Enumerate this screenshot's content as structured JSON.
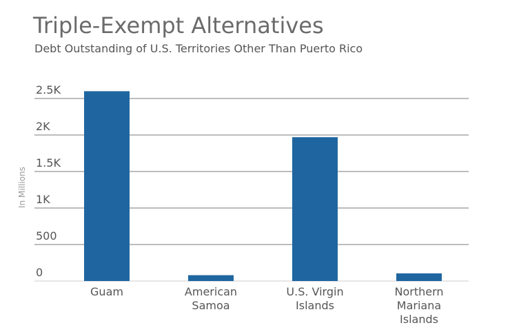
{
  "chart_data": {
    "type": "bar",
    "title": "Triple-Exempt Alternatives",
    "subtitle": "Debt Outstanding of U.S. Territories Other Than Puerto Rico",
    "ylabel": "In Millions",
    "xlabel": "",
    "categories": [
      "Guam",
      "American Samoa",
      "U.S. Virgin Islands",
      "Northern Mariana Islands"
    ],
    "category_lines": [
      [
        "Guam"
      ],
      [
        "American",
        "Samoa"
      ],
      [
        "U.S. Virgin",
        "Islands"
      ],
      [
        "Northern",
        "Mariana",
        "Islands"
      ]
    ],
    "values": [
      2600,
      80,
      1970,
      105
    ],
    "ylim": [
      0,
      2500
    ],
    "yticks": [
      0,
      500,
      1000,
      1500,
      2000,
      2500
    ],
    "ytick_labels": [
      "0",
      "500",
      "1K",
      "1.5K",
      "2K",
      "2.5K"
    ],
    "grid": true,
    "colors": {
      "bar": "#1f66a0",
      "grid": "#7a7a7a",
      "axis": "#cccccc"
    }
  }
}
